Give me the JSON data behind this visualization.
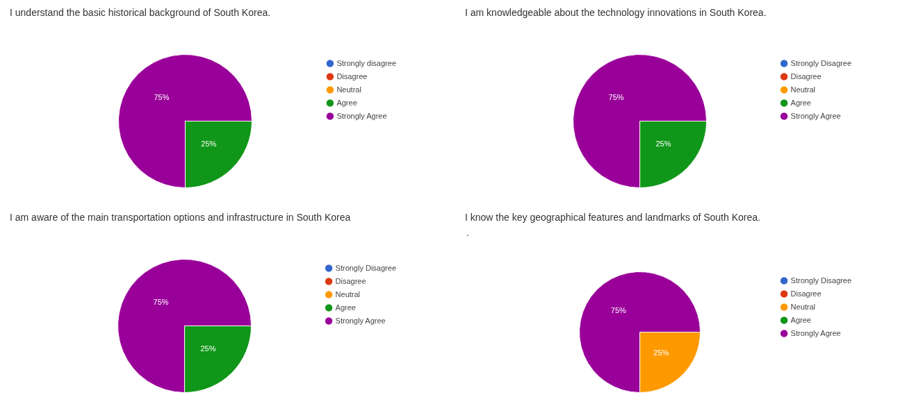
{
  "chart_data": [
    {
      "type": "pie",
      "title": "I understand the basic historical background of South Korea.",
      "categories": [
        "Strongly disagree",
        "Disagree",
        "Neutral",
        "Agree",
        "Strongly Agree"
      ],
      "values": [
        0,
        0,
        0,
        25,
        75
      ],
      "colors": [
        "#3366cc",
        "#dc3912",
        "#ff9900",
        "#109618",
        "#990099"
      ],
      "value_labels": [
        null,
        null,
        null,
        "25%",
        "75%"
      ],
      "legend": "right"
    },
    {
      "type": "pie",
      "title": "I am knowledgeable about the technology innovations in South Korea.",
      "categories": [
        "Strongly Disagree",
        "Disagree",
        "Neutral",
        "Agree",
        "Strongly Agree"
      ],
      "values": [
        0,
        0,
        0,
        25,
        75
      ],
      "colors": [
        "#3366cc",
        "#dc3912",
        "#ff9900",
        "#109618",
        "#990099"
      ],
      "value_labels": [
        null,
        null,
        null,
        "25%",
        "75%"
      ],
      "legend": "right"
    },
    {
      "type": "pie",
      "title": "I am aware of the main transportation options and infrastructure in South Korea",
      "categories": [
        "Strongly Disagree",
        "Disagree",
        "Neutral",
        "Agree",
        "Strongly Agree"
      ],
      "values": [
        0,
        0,
        0,
        25,
        75
      ],
      "colors": [
        "#3366cc",
        "#dc3912",
        "#ff9900",
        "#109618",
        "#990099"
      ],
      "value_labels": [
        null,
        null,
        null,
        "25%",
        "75%"
      ],
      "legend": "right"
    },
    {
      "type": "pie",
      "title": "I know the key geographical features and landmarks of South Korea.",
      "subtitle": ".",
      "categories": [
        "Strongly Disagree",
        "Disagree",
        "Neutral",
        "Agree",
        "Strongly Agree"
      ],
      "values": [
        0,
        0,
        25,
        0,
        75
      ],
      "colors": [
        "#3366cc",
        "#dc3912",
        "#ff9900",
        "#109618",
        "#990099"
      ],
      "value_labels": [
        null,
        null,
        "25%",
        null,
        "75%"
      ],
      "legend": "right"
    }
  ]
}
